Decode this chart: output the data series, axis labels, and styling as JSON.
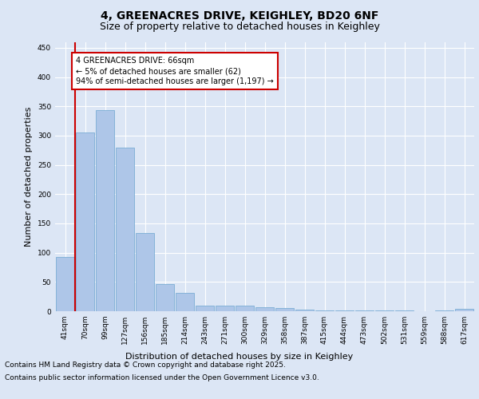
{
  "title1": "4, GREENACRES DRIVE, KEIGHLEY, BD20 6NF",
  "title2": "Size of property relative to detached houses in Keighley",
  "xlabel": "Distribution of detached houses by size in Keighley",
  "ylabel": "Number of detached properties",
  "categories": [
    "41sqm",
    "70sqm",
    "99sqm",
    "127sqm",
    "156sqm",
    "185sqm",
    "214sqm",
    "243sqm",
    "271sqm",
    "300sqm",
    "329sqm",
    "358sqm",
    "387sqm",
    "415sqm",
    "444sqm",
    "473sqm",
    "502sqm",
    "531sqm",
    "559sqm",
    "588sqm",
    "617sqm"
  ],
  "values": [
    93,
    305,
    343,
    280,
    133,
    47,
    31,
    10,
    10,
    10,
    7,
    6,
    3,
    2,
    1,
    1,
    1,
    1,
    0,
    1,
    4
  ],
  "bar_color": "#aec6e8",
  "bar_edge_color": "#7aadd4",
  "vline_color": "#cc0000",
  "annotation_text": "4 GREENACRES DRIVE: 66sqm\n← 5% of detached houses are smaller (62)\n94% of semi-detached houses are larger (1,197) →",
  "annotation_box_color": "#cc0000",
  "background_color": "#dce6f5",
  "plot_bg_color": "#dce6f5",
  "ylim": [
    0,
    460
  ],
  "yticks": [
    0,
    50,
    100,
    150,
    200,
    250,
    300,
    350,
    400,
    450
  ],
  "grid_color": "#ffffff",
  "footer1": "Contains HM Land Registry data © Crown copyright and database right 2025.",
  "footer2": "Contains public sector information licensed under the Open Government Licence v3.0.",
  "title_fontsize": 10,
  "subtitle_fontsize": 9,
  "axis_label_fontsize": 8,
  "tick_fontsize": 6.5,
  "footer_fontsize": 6.5,
  "ann_fontsize": 7
}
